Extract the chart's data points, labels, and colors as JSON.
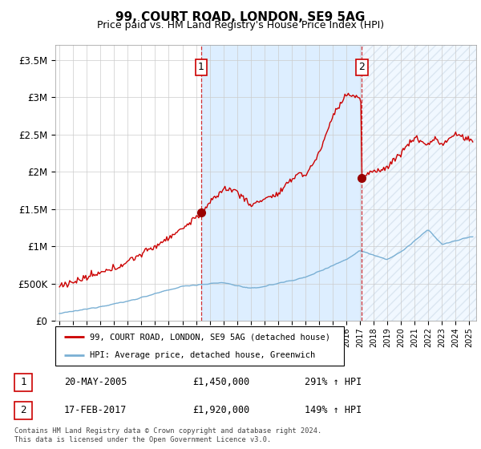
{
  "title": "99, COURT ROAD, LONDON, SE9 5AG",
  "subtitle": "Price paid vs. HM Land Registry's House Price Index (HPI)",
  "ylabel_ticks": [
    "£0",
    "£500K",
    "£1M",
    "£1.5M",
    "£2M",
    "£2.5M",
    "£3M",
    "£3.5M"
  ],
  "ytick_values": [
    0,
    500000,
    1000000,
    1500000,
    2000000,
    2500000,
    3000000,
    3500000
  ],
  "ylim": [
    0,
    3700000
  ],
  "xlim_start": 1994.7,
  "xlim_end": 2025.5,
  "marker1_x": 2005.38,
  "marker1_y": 1450000,
  "marker2_x": 2017.12,
  "marker2_y": 1920000,
  "legend_label1": "99, COURT ROAD, LONDON, SE9 5AG (detached house)",
  "legend_label2": "HPI: Average price, detached house, Greenwich",
  "line1_color": "#cc0000",
  "line2_color": "#7ab0d4",
  "vline_color": "#cc0000",
  "marker_color": "#990000",
  "box_color": "#cc0000",
  "shade_color": "#ddeeff",
  "background_color": "#ffffff",
  "grid_color": "#cccccc",
  "footer": "Contains HM Land Registry data © Crown copyright and database right 2024.\nThis data is licensed under the Open Government Licence v3.0."
}
